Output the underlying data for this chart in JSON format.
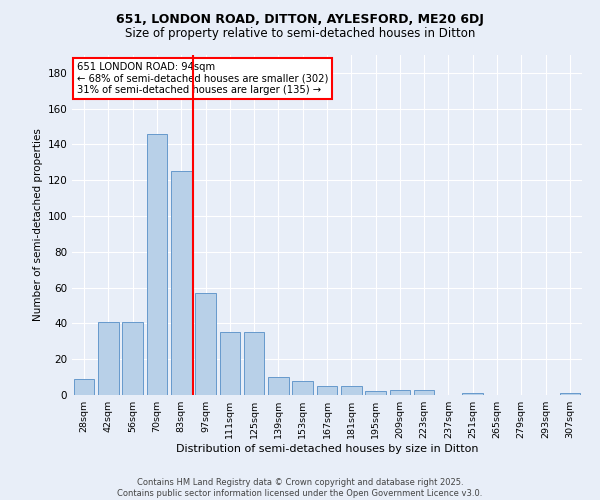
{
  "title1": "651, LONDON ROAD, DITTON, AYLESFORD, ME20 6DJ",
  "title2": "Size of property relative to semi-detached houses in Ditton",
  "xlabel": "Distribution of semi-detached houses by size in Ditton",
  "ylabel": "Number of semi-detached properties",
  "categories": [
    "28sqm",
    "42sqm",
    "56sqm",
    "70sqm",
    "83sqm",
    "97sqm",
    "111sqm",
    "125sqm",
    "139sqm",
    "153sqm",
    "167sqm",
    "181sqm",
    "195sqm",
    "209sqm",
    "223sqm",
    "237sqm",
    "251sqm",
    "265sqm",
    "279sqm",
    "293sqm",
    "307sqm"
  ],
  "values": [
    9,
    41,
    41,
    146,
    125,
    57,
    35,
    35,
    10,
    8,
    5,
    5,
    2,
    3,
    3,
    0,
    1,
    0,
    0,
    0,
    1
  ],
  "bar_color": "#b8d0e8",
  "bar_edge_color": "#6699cc",
  "vline_color": "red",
  "annotation_title": "651 LONDON ROAD: 94sqm",
  "annotation_line1": "← 68% of semi-detached houses are smaller (302)",
  "annotation_line2": "31% of semi-detached houses are larger (135) →",
  "annotation_box_color": "white",
  "annotation_box_edge": "red",
  "ylim": [
    0,
    190
  ],
  "yticks": [
    0,
    20,
    40,
    60,
    80,
    100,
    120,
    140,
    160,
    180
  ],
  "footer": "Contains HM Land Registry data © Crown copyright and database right 2025.\nContains public sector information licensed under the Open Government Licence v3.0.",
  "background_color": "#e8eef8",
  "grid_color": "#ffffff",
  "title1_fontsize": 9,
  "title2_fontsize": 8.5
}
